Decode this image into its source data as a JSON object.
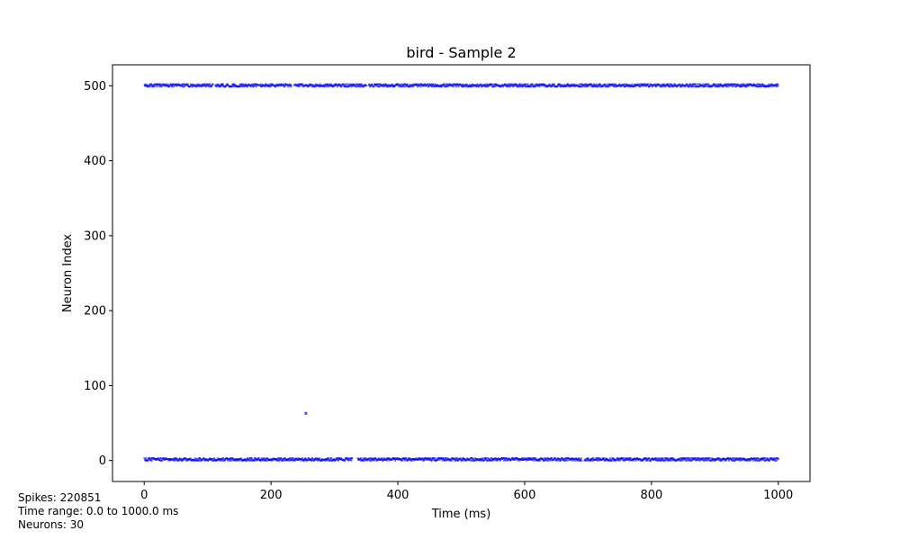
{
  "chart_data": {
    "type": "scatter",
    "title": "bird - Sample 2",
    "xlabel": "Time (ms)",
    "ylabel": "Neuron Index",
    "xlim": [
      -50,
      1050
    ],
    "ylim": [
      -28,
      528
    ],
    "x_ticks": [
      0,
      200,
      400,
      600,
      800,
      1000
    ],
    "y_ticks": [
      0,
      100,
      200,
      300,
      400,
      500
    ],
    "marker_color": "#0000ff",
    "grid": false,
    "series": [
      {
        "bands": [
          {
            "y_values": [
              499,
              500,
              501,
              502
            ],
            "x_range": [
              0,
              1000
            ],
            "gaps": [
              [
                108,
                112
              ],
              [
                232,
                236
              ],
              [
                350,
                354
              ]
            ]
          },
          {
            "y_values": [
              0,
              1,
              2,
              3
            ],
            "x_range": [
              0,
              1000
            ],
            "gaps": [
              [
                328,
                336
              ],
              [
                690,
                694
              ]
            ]
          }
        ],
        "points": [
          {
            "x": 255,
            "y": 63
          }
        ]
      }
    ]
  },
  "info": {
    "spikes": "Spikes: 220851",
    "time_range": "Time range: 0.0 to 1000.0 ms",
    "neurons": "Neurons: 30"
  }
}
